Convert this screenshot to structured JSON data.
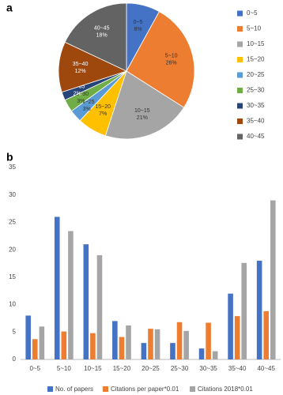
{
  "chart_data": [
    {
      "type": "pie",
      "title": "a",
      "categories": [
        "0~5",
        "5~10",
        "10~15",
        "15~20",
        "20~25",
        "25~30",
        "30~35",
        "35~40",
        "40~45"
      ],
      "values": [
        8,
        26,
        21,
        7,
        3,
        3,
        2,
        12,
        18
      ],
      "value_labels": [
        "8%",
        "26%",
        "21%",
        "7%",
        "3%",
        "3%",
        "2%",
        "12%",
        "18%"
      ],
      "colors": [
        "#4472c4",
        "#ed7d31",
        "#a5a5a5",
        "#ffc000",
        "#5b9bd5",
        "#70ad47",
        "#264478",
        "#9e480e",
        "#636363"
      ],
      "legend": "right"
    },
    {
      "type": "bar",
      "title": "b",
      "categories": [
        "0~5",
        "5~10",
        "10~15",
        "15~20",
        "20~25",
        "25~30",
        "30~35",
        "35~40",
        "40~45"
      ],
      "series": [
        {
          "name": "No. of papers",
          "color": "#4472c4",
          "values": [
            8,
            26,
            21,
            7,
            3,
            3,
            2,
            12,
            18
          ]
        },
        {
          "name": "Citations per paper*0.01",
          "color": "#ed7d31",
          "values": [
            3.7,
            5.1,
            4.8,
            4.1,
            5.6,
            6.8,
            6.7,
            7.9,
            8.8
          ]
        },
        {
          "name": "Citations 2018*0.01",
          "color": "#a5a5a5",
          "values": [
            6,
            23.4,
            19,
            6.2,
            5.5,
            5.2,
            1.5,
            17.6,
            29
          ]
        }
      ],
      "ylim": [
        0,
        35
      ],
      "yticks": [
        0,
        5,
        10,
        15,
        20,
        25,
        30,
        35
      ],
      "grid": false,
      "legend": "bottom"
    }
  ]
}
